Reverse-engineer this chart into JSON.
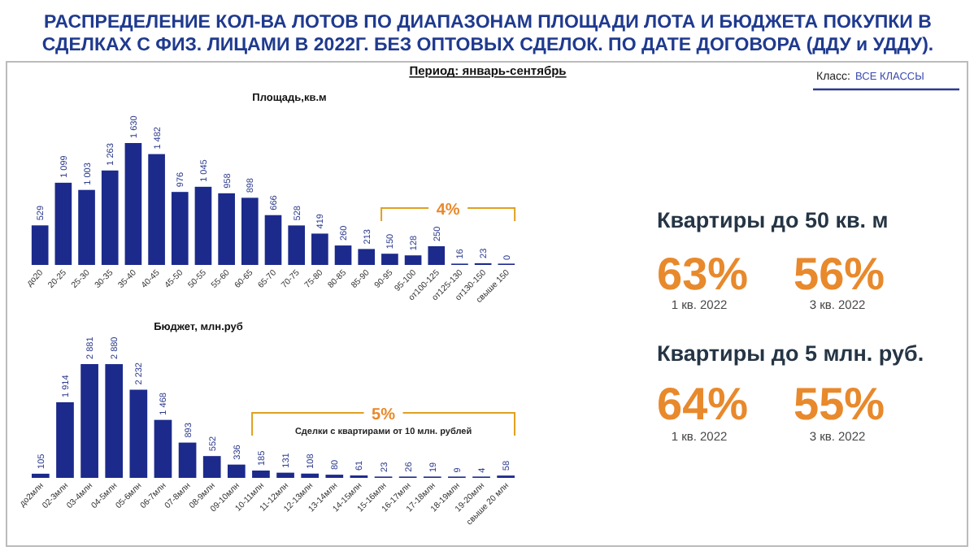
{
  "chart_data": [
    {
      "type": "bar",
      "title": "Площадь,кв.м",
      "color": "#1c2a8c",
      "categories": [
        "до20",
        "20-25",
        "25-30",
        "30-35",
        "35-40",
        "40-45",
        "45-50",
        "50-55",
        "55-60",
        "60-65",
        "65-70",
        "70-75",
        "75-80",
        "80-85",
        "85-90",
        "90-95",
        "95-100",
        "от100-125",
        "от125-130",
        "от130-150",
        "свыше 150"
      ],
      "values": [
        529,
        1099,
        1003,
        1263,
        1630,
        1482,
        976,
        1045,
        958,
        898,
        666,
        528,
        419,
        260,
        213,
        150,
        128,
        250,
        16,
        23,
        0
      ],
      "value_labels": [
        "529",
        "1 099",
        "1 003",
        "1 263",
        "1 630",
        "1 482",
        "976",
        "1 045",
        "958",
        "898",
        "666",
        "528",
        "419",
        "260",
        "213",
        "150",
        "128",
        "250",
        "16",
        "23",
        "0"
      ],
      "annotations": [
        "4%"
      ]
    },
    {
      "type": "bar",
      "title": "Бюджет, млн.руб",
      "color": "#1c2a8c",
      "categories": [
        "до2млн",
        "02-3млн",
        "03-4млн",
        "04-5млн",
        "05-6млн",
        "06-7млн",
        "07-8млн",
        "08-9млн",
        "09-10млн",
        "10-11млн",
        "11-12млн",
        "12-13млн",
        "13-14млн",
        "14-15млн",
        "15-16млн",
        "16-17млн",
        "17-18млн",
        "18-19млн",
        "19-20млн",
        "свыше 20 млн"
      ],
      "values": [
        105,
        1914,
        2881,
        2880,
        2232,
        1468,
        893,
        552,
        336,
        185,
        131,
        108,
        80,
        61,
        23,
        26,
        19,
        9,
        4,
        58
      ],
      "value_labels": [
        "105",
        "1 914",
        "2 881",
        "2 880",
        "2 232",
        "1 468",
        "893",
        "552",
        "336",
        "185",
        "131",
        "108",
        "80",
        "61",
        "23",
        "26",
        "19",
        "9",
        "4",
        "58"
      ],
      "annotations": [
        "5%",
        "Сделки с квартирами от 10 млн. рублей"
      ]
    },
    {
      "type": "other",
      "title": "РАСПРЕДЕЛЕНИЕ КОЛ-ВА  ЛОТОВ ПО ДИАПАЗОНАМ ПЛОЩАДИ ЛОТА И БЮДЖЕТА ПОКУПКИ В СДЕЛКАХ С ФИЗ. ЛИЦАМИ В 2022Г. БЕЗ ОПТОВЫХ СДЕЛОК. ПО ДАТЕ ДОГОВОРА (ДДУ и УДДУ).",
      "subtitle": "Период: январь-сентябрь",
      "annotations": [
        "Класс:",
        "ВСЕ КЛАССЫ",
        "Квартиры до 50 кв. м",
        "63%",
        "1 кв. 2022",
        "56%",
        "3 кв. 2022",
        "Квартиры до 5 млн. руб.",
        "64%",
        "1 кв. 2022",
        "55%",
        "3 кв. 2022"
      ]
    }
  ]
}
